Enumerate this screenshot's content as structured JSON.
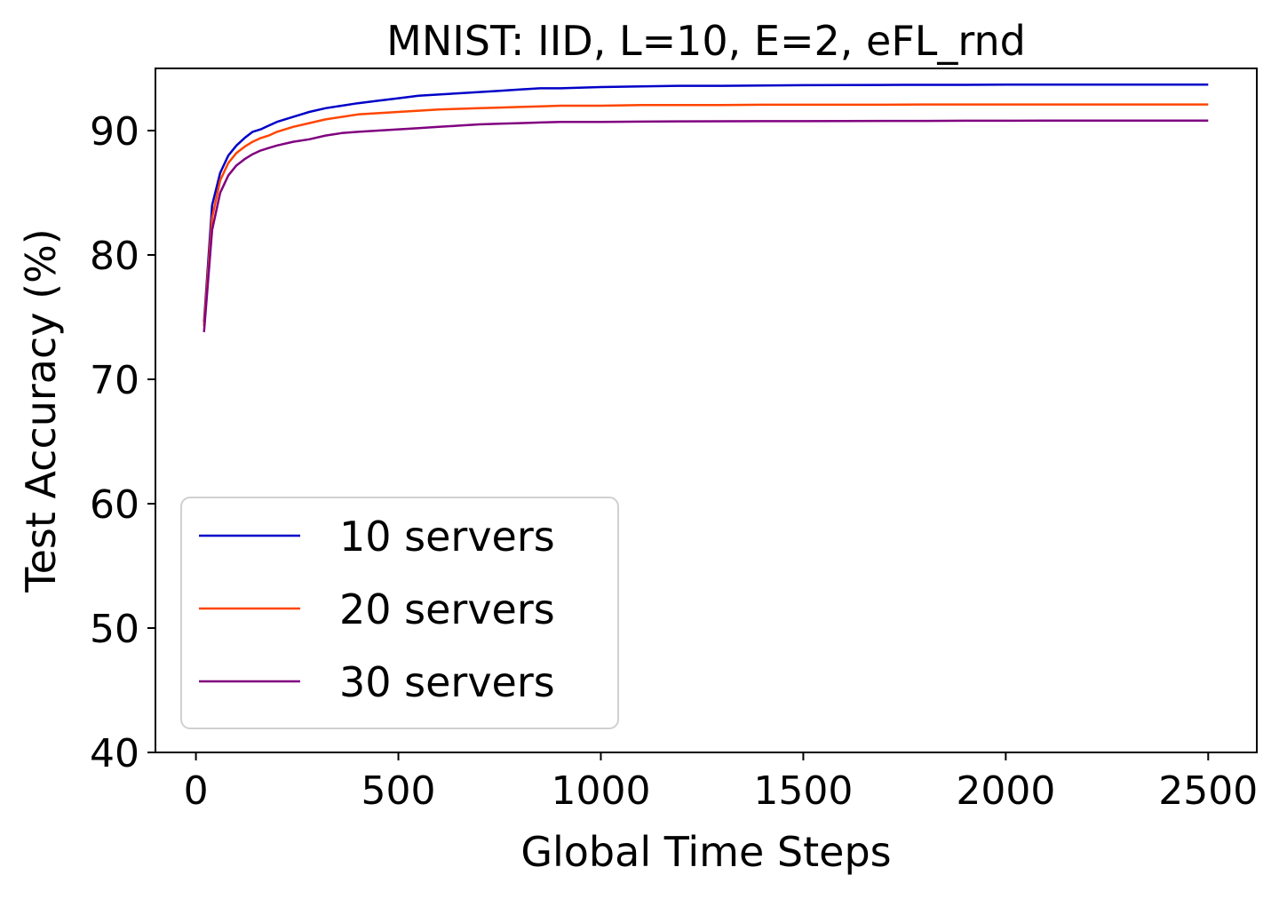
{
  "chart_data": {
    "type": "line",
    "title": "MNIST: IID, L=10, E=2, eFL_rnd",
    "xlabel": "Global Time Steps",
    "ylabel": "Test Accuracy (%)",
    "xlim": [
      -100,
      2620
    ],
    "ylim": [
      40,
      95
    ],
    "xticks": [
      0,
      500,
      1000,
      1500,
      2000,
      2500
    ],
    "yticks": [
      40,
      50,
      60,
      70,
      80,
      90
    ],
    "grid": false,
    "legend_position": "lower-left",
    "x": [
      20,
      40,
      60,
      80,
      100,
      120,
      140,
      160,
      180,
      200,
      240,
      280,
      320,
      360,
      400,
      450,
      500,
      550,
      600,
      650,
      700,
      750,
      800,
      850,
      900,
      1000,
      1100,
      1200,
      1300,
      1400,
      1500,
      1600,
      1700,
      1800,
      1900,
      2000,
      2100,
      2200,
      2300,
      2400,
      2500
    ],
    "series": [
      {
        "name": "10 servers",
        "color": "#0000c8",
        "values": [
          74.6,
          84.0,
          86.6,
          88.0,
          88.8,
          89.4,
          89.9,
          90.1,
          90.4,
          90.7,
          91.1,
          91.5,
          91.8,
          92.0,
          92.2,
          92.4,
          92.6,
          92.8,
          92.9,
          93.0,
          93.1,
          93.2,
          93.3,
          93.4,
          93.4,
          93.5,
          93.55,
          93.6,
          93.6,
          93.62,
          93.65,
          93.66,
          93.67,
          93.68,
          93.68,
          93.69,
          93.69,
          93.7,
          93.7,
          93.7,
          93.7
        ]
      },
      {
        "name": "20 servers",
        "color": "#ff4500",
        "values": [
          74.3,
          83.0,
          86.0,
          87.4,
          88.2,
          88.7,
          89.1,
          89.4,
          89.6,
          89.9,
          90.3,
          90.6,
          90.9,
          91.1,
          91.3,
          91.4,
          91.5,
          91.6,
          91.7,
          91.75,
          91.8,
          91.85,
          91.9,
          91.95,
          92.0,
          92.0,
          92.05,
          92.05,
          92.05,
          92.08,
          92.08,
          92.08,
          92.08,
          92.1,
          92.1,
          92.1,
          92.1,
          92.1,
          92.1,
          92.1,
          92.1
        ]
      },
      {
        "name": "30 servers",
        "color": "#800080",
        "values": [
          73.8,
          82.0,
          85.0,
          86.4,
          87.2,
          87.7,
          88.1,
          88.4,
          88.6,
          88.8,
          89.1,
          89.3,
          89.6,
          89.8,
          89.9,
          90.0,
          90.1,
          90.2,
          90.3,
          90.4,
          90.5,
          90.55,
          90.6,
          90.65,
          90.7,
          90.7,
          90.72,
          90.74,
          90.75,
          90.76,
          90.76,
          90.77,
          90.78,
          90.78,
          90.79,
          90.79,
          90.8,
          90.8,
          90.8,
          90.8,
          90.8
        ]
      }
    ]
  }
}
